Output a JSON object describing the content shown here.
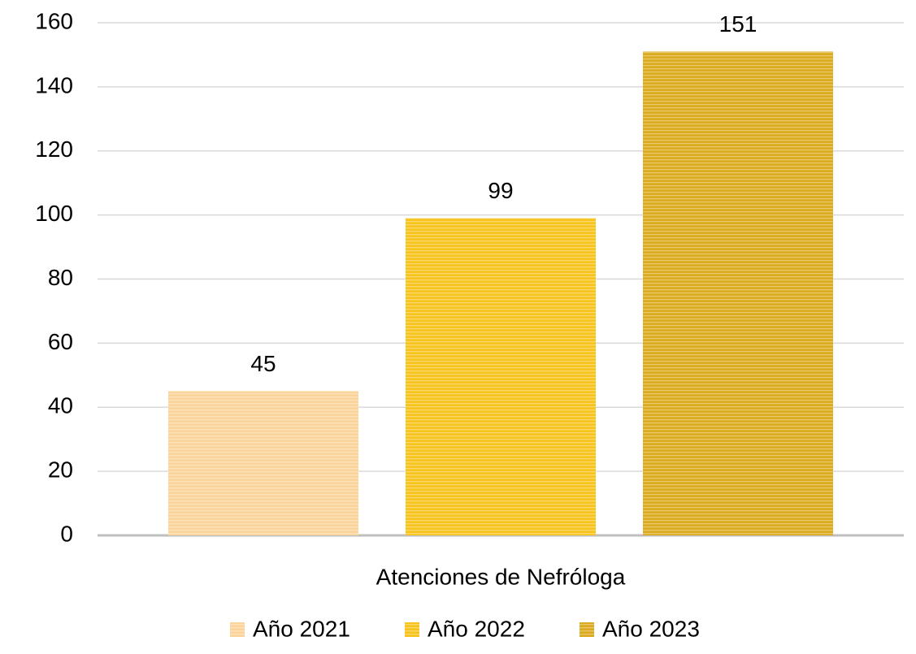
{
  "chart_data": {
    "type": "bar",
    "categories": [
      "Atenciones de Nefróloga"
    ],
    "series": [
      {
        "name": "Año 2021",
        "color": "#fbd49a",
        "values": [
          45
        ]
      },
      {
        "name": "Año 2022",
        "color": "#f7c41d",
        "values": [
          99
        ]
      },
      {
        "name": "Año 2023",
        "color": "#dcaa1f",
        "values": [
          151
        ]
      }
    ],
    "ylim": [
      0,
      160
    ],
    "yticks": [
      0,
      20,
      40,
      60,
      80,
      100,
      120,
      140,
      160
    ],
    "grid": true,
    "legend": "bottom"
  }
}
